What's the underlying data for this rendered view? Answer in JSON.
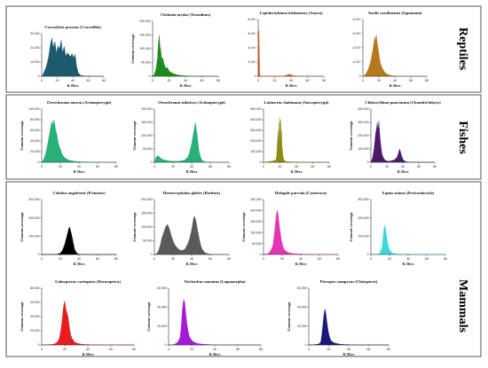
{
  "figure": {
    "colors": {
      "frame": "#555555",
      "axis": "#333333"
    }
  },
  "sections": [
    {
      "label": "Reptiles",
      "panels": [
        0,
        1,
        2,
        3
      ]
    },
    {
      "label": "Fishes",
      "panels": [
        4,
        5,
        6,
        7
      ]
    },
    {
      "label": "Mammals",
      "panels": [
        8,
        9,
        10,
        11,
        12,
        13,
        14
      ]
    }
  ],
  "chart_data": [
    {
      "type": "area",
      "title": "Crocodylus porosus (Crocodilia)",
      "xlabel": "K Divs",
      "ylabel": "",
      "xlim": [
        0,
        80
      ],
      "ylim": [
        0,
        30000
      ],
      "xticks": [
        0,
        20,
        40,
        60,
        80
      ],
      "yticks": [
        0,
        10000,
        20000,
        30000
      ],
      "ytick_labels": [
        "0",
        "10,000",
        "20,000",
        "30,000"
      ],
      "color": "#1c5a6e",
      "x": [
        0,
        1,
        3,
        5,
        7,
        9,
        11,
        13,
        15,
        17,
        19,
        21,
        23,
        25,
        27,
        29,
        31,
        33,
        35,
        37,
        39,
        41,
        43,
        45,
        47,
        50,
        55,
        60,
        70,
        80
      ],
      "y": [
        0,
        500,
        3000,
        5500,
        9000,
        14000,
        22000,
        27000,
        20000,
        24500,
        16000,
        21500,
        19000,
        25500,
        16500,
        21000,
        14000,
        16500,
        15500,
        13500,
        16000,
        13000,
        15500,
        7000,
        2500,
        600,
        200,
        80,
        0,
        0
      ]
    },
    {
      "type": "area",
      "title": "Chelonia mydas (Testudines)",
      "xlabel": "K Divs",
      "ylabel": "Genome coverage",
      "xlim": [
        0,
        80
      ],
      "ylim": [
        0,
        200000
      ],
      "xticks": [
        0,
        20,
        40,
        60,
        80
      ],
      "yticks": [
        0,
        50000,
        100000,
        150000,
        200000
      ],
      "ytick_labels": [
        "0",
        "50,000",
        "100,000",
        "150,000",
        "200,000"
      ],
      "color": "#1f8a1f",
      "x": [
        0,
        2,
        4,
        6,
        7,
        8,
        9,
        10,
        11,
        12,
        14,
        16,
        18,
        20,
        22,
        25,
        30,
        35,
        40,
        50,
        60,
        70,
        80
      ],
      "y": [
        0,
        6000,
        25000,
        65000,
        120000,
        150000,
        110000,
        95000,
        60000,
        70000,
        45000,
        30000,
        32000,
        20000,
        15000,
        10000,
        5000,
        3000,
        1500,
        500,
        0,
        0,
        0
      ]
    },
    {
      "type": "area",
      "title": "Leptobrachium leishanense (Anura)",
      "xlabel": "K Divs",
      "ylabel": "",
      "xlim": [
        0,
        80
      ],
      "ylim": [
        0,
        8000000
      ],
      "xticks": [
        0,
        20,
        40,
        60,
        80
      ],
      "yticks": [
        0,
        2000000,
        4000000,
        6000000,
        8000000
      ],
      "ytick_labels": [
        "0",
        "2×10⁶",
        "4×10⁶",
        "6×10⁶",
        "8×10⁶"
      ],
      "color": "#e8631c",
      "x": [
        0,
        0.5,
        1,
        1.5,
        2,
        3,
        5,
        10,
        20,
        30,
        34,
        36,
        38,
        40,
        42,
        50,
        60,
        70,
        80
      ],
      "y": [
        0,
        5500000,
        6500000,
        3000000,
        200000,
        50000,
        30000,
        20000,
        15000,
        20000,
        120000,
        250000,
        300000,
        200000,
        90000,
        20000,
        5000,
        0,
        0
      ]
    },
    {
      "type": "area",
      "title": "Anolis carolinensis (Squamata)",
      "xlabel": "K Divs",
      "ylabel": "",
      "xlim": [
        0,
        80
      ],
      "ylim": [
        0,
        400000
      ],
      "xticks": [
        0,
        20,
        40,
        60,
        80
      ],
      "yticks": [
        0,
        100000,
        200000,
        300000,
        400000
      ],
      "ytick_labels": [
        "0",
        "1×10⁵",
        "2×10⁵",
        "3×10⁵",
        "4×10⁵"
      ],
      "color": "#b5781c",
      "x": [
        0,
        2,
        4,
        6,
        8,
        10,
        12,
        14,
        15,
        16,
        17,
        18,
        19,
        20,
        21,
        22,
        24,
        26,
        28,
        30,
        35,
        40,
        50,
        60,
        80
      ],
      "y": [
        0,
        5000,
        20000,
        40000,
        70000,
        110000,
        170000,
        240000,
        280000,
        250000,
        290000,
        230000,
        200000,
        160000,
        120000,
        90000,
        60000,
        40000,
        25000,
        15000,
        5000,
        2000,
        0,
        0,
        0
      ]
    },
    {
      "type": "area",
      "title": "Oreochromis aureus (Actinopterygii)",
      "xlabel": "K Divs",
      "ylabel": "Genome coverage",
      "xlim": [
        0,
        80
      ],
      "ylim": [
        0,
        100000
      ],
      "xticks": [
        0,
        20,
        40,
        60,
        80
      ],
      "yticks": [
        0,
        20000,
        40000,
        60000,
        80000,
        100000
      ],
      "ytick_labels": [
        "0",
        "20,000",
        "40,000",
        "60,000",
        "80,000",
        "100,000"
      ],
      "color": "#28b07a",
      "x": [
        0,
        2,
        4,
        6,
        8,
        10,
        11,
        12,
        13,
        14,
        15,
        16,
        17,
        18,
        20,
        22,
        24,
        26,
        28,
        30,
        35,
        40,
        50,
        60,
        80
      ],
      "y": [
        0,
        5000,
        15000,
        30000,
        50000,
        70000,
        78000,
        68000,
        80000,
        72000,
        60000,
        55000,
        45000,
        35000,
        25000,
        15000,
        10000,
        7000,
        5000,
        3500,
        2000,
        1000,
        500,
        0,
        0
      ]
    },
    {
      "type": "area",
      "title": "Oreochromis niloticus (Actinopterygii)",
      "xlabel": "K Divs",
      "ylabel": "Genome coverage",
      "xlim": [
        0,
        80
      ],
      "ylim": [
        0,
        200000
      ],
      "xticks": [
        0,
        20,
        40,
        60,
        80
      ],
      "yticks": [
        0,
        50000,
        100000,
        150000,
        200000
      ],
      "ytick_labels": [
        "0",
        "50,000",
        "100,000",
        "150,000",
        "200,000"
      ],
      "color": "#28b07a",
      "x": [
        0,
        2,
        4,
        6,
        8,
        10,
        12,
        14,
        16,
        20,
        25,
        30,
        33,
        36,
        38,
        40,
        42,
        43,
        44,
        45,
        46,
        47,
        48,
        50,
        52,
        55,
        60,
        80
      ],
      "y": [
        0,
        20000,
        25000,
        18000,
        12000,
        9000,
        8000,
        6000,
        5000,
        4000,
        4000,
        6000,
        10000,
        20000,
        40000,
        70000,
        110000,
        130000,
        150000,
        125000,
        100000,
        70000,
        40000,
        15000,
        5000,
        1000,
        0,
        0
      ]
    },
    {
      "type": "area",
      "title": "Latimeria chalumnae (Sarcopterygii)",
      "xlabel": "K Divs",
      "ylabel": "",
      "xlim": [
        0,
        80
      ],
      "ylim": [
        0,
        500000
      ],
      "xticks": [
        0,
        20,
        40,
        60,
        80
      ],
      "yticks": [
        0,
        100000,
        200000,
        300000,
        400000,
        500000
      ],
      "ytick_labels": [
        "0",
        "100,000",
        "200,000",
        "300,000",
        "400,000",
        "500,000"
      ],
      "color": "#8c8c14",
      "x": [
        0,
        5,
        10,
        15,
        16,
        17,
        18,
        18.5,
        19,
        19.5,
        20,
        20.5,
        21,
        21.5,
        22,
        22.5,
        23,
        24,
        26,
        30,
        40,
        60,
        80
      ],
      "y": [
        0,
        5000,
        10000,
        20000,
        60000,
        200000,
        300000,
        180000,
        380000,
        200000,
        420000,
        150000,
        390000,
        250000,
        300000,
        150000,
        120000,
        40000,
        10000,
        5000,
        2000,
        0,
        0
      ]
    },
    {
      "type": "area",
      "title": "Chiloscyllium punctatum (Chondrichthyes)",
      "xlabel": "K Divs",
      "ylabel": "Genome coverage",
      "xlim": [
        0,
        80
      ],
      "ylim": [
        0,
        400000
      ],
      "xticks": [
        0,
        20,
        40,
        60,
        80
      ],
      "yticks": [
        0,
        100000,
        200000,
        300000,
        400000
      ],
      "ytick_labels": [
        "0",
        "100,000",
        "200,000",
        "300,000",
        "400,000"
      ],
      "color": "#4b1a6b",
      "x": [
        0,
        2,
        4,
        6,
        7,
        8,
        9,
        10,
        11,
        12,
        13,
        14,
        16,
        18,
        20,
        22,
        25,
        30,
        33,
        35,
        36,
        37,
        38,
        40,
        42,
        45,
        50,
        60,
        80
      ],
      "y": [
        0,
        30000,
        100000,
        220000,
        250000,
        300000,
        240000,
        310000,
        220000,
        150000,
        100000,
        60000,
        30000,
        15000,
        10000,
        8000,
        10000,
        20000,
        40000,
        80000,
        100000,
        80000,
        55000,
        25000,
        10000,
        3000,
        1000,
        0,
        0
      ]
    },
    {
      "type": "area",
      "title": "Colobus angolensis (Primates)",
      "xlabel": "K Divs",
      "ylabel": "Genome coverage",
      "xlim": [
        0,
        80
      ],
      "ylim": [
        0,
        300000
      ],
      "xticks": [
        0,
        20,
        40,
        60,
        80
      ],
      "yticks": [
        0,
        100000,
        200000,
        300000
      ],
      "ytick_labels": [
        "0",
        "100,000",
        "200,000",
        "300,000"
      ],
      "color": "#000000",
      "x": [
        0,
        10,
        15,
        18,
        20,
        22,
        24,
        25,
        26,
        27,
        28,
        29,
        30,
        31,
        32,
        33,
        34,
        35,
        36,
        38,
        40,
        45,
        50,
        60,
        80
      ],
      "y": [
        0,
        500,
        1000,
        3000,
        8000,
        20000,
        45000,
        60000,
        80000,
        100000,
        120000,
        140000,
        150000,
        130000,
        110000,
        85000,
        60000,
        35000,
        20000,
        6000,
        2000,
        500,
        200,
        0,
        0
      ]
    },
    {
      "type": "area",
      "title": "Heterocephalus glaber (Rodents)",
      "xlabel": "K Divs",
      "ylabel": "Genome coverage",
      "xlim": [
        0,
        80
      ],
      "ylim": [
        0,
        200000
      ],
      "xticks": [
        0,
        20,
        40,
        60,
        80
      ],
      "yticks": [
        0,
        50000,
        100000,
        150000,
        200000
      ],
      "ytick_labels": [
        "0",
        "50,000",
        "100,000",
        "150,000",
        "200,000"
      ],
      "color": "#5a5a5a",
      "x": [
        0,
        2,
        4,
        6,
        8,
        10,
        12,
        14,
        16,
        18,
        20,
        22,
        25,
        28,
        30,
        33,
        36,
        38,
        40,
        41,
        42,
        43,
        44,
        45,
        46,
        48,
        50,
        52,
        55,
        60,
        80
      ],
      "y": [
        0,
        2000,
        10000,
        30000,
        60000,
        80000,
        100000,
        110000,
        95000,
        70000,
        50000,
        35000,
        22000,
        15000,
        15000,
        20000,
        40000,
        60000,
        90000,
        110000,
        130000,
        140000,
        130000,
        115000,
        95000,
        60000,
        30000,
        15000,
        5000,
        1000,
        0
      ]
    },
    {
      "type": "area",
      "title": "Helogale parvula (Carnivora)",
      "xlabel": "K Divs",
      "ylabel": "Genome coverage",
      "xlim": [
        0,
        80
      ],
      "ylim": [
        0,
        250000
      ],
      "xticks": [
        0,
        20,
        40,
        60,
        80
      ],
      "yticks": [
        0,
        50000,
        100000,
        150000,
        200000,
        250000
      ],
      "ytick_labels": [
        "0",
        "50,000",
        "100,000",
        "150,000",
        "200,000",
        "250,000"
      ],
      "color": "#e334b4",
      "x": [
        0,
        4,
        6,
        8,
        10,
        11,
        12,
        13,
        14,
        15,
        16,
        17,
        18,
        19,
        20,
        21,
        22,
        24,
        26,
        28,
        30,
        35,
        40,
        45,
        50,
        60,
        80
      ],
      "y": [
        0,
        3000,
        8000,
        20000,
        40000,
        70000,
        110000,
        150000,
        190000,
        200000,
        170000,
        130000,
        100000,
        70000,
        50000,
        35000,
        25000,
        15000,
        10000,
        7000,
        5000,
        3000,
        2000,
        1000,
        500,
        0,
        0
      ]
    },
    {
      "type": "area",
      "title": "Equus asinus (Perissodactyla)",
      "xlabel": "K Divs",
      "ylabel": "Genome coverage",
      "xlim": [
        0,
        80
      ],
      "ylim": [
        0,
        300000
      ],
      "xticks": [
        0,
        20,
        40,
        60,
        80
      ],
      "yticks": [
        0,
        100000,
        200000,
        300000
      ],
      "ytick_labels": [
        "0",
        "100,000",
        "200,000",
        "300,000"
      ],
      "color": "#3ad8e0",
      "x": [
        0,
        6,
        8,
        10,
        12,
        13,
        14,
        15,
        16,
        17,
        18,
        19,
        20,
        22,
        24,
        26,
        30,
        35,
        40,
        50,
        60,
        80
      ],
      "y": [
        0,
        1000,
        3000,
        10000,
        40000,
        90000,
        140000,
        160000,
        130000,
        100000,
        60000,
        40000,
        25000,
        12000,
        6000,
        4000,
        2000,
        1000,
        500,
        0,
        0,
        0
      ]
    },
    {
      "type": "area",
      "title": "Galeopterus variegatus (Dermoptera)",
      "xlabel": "K Divs",
      "ylabel": "Genome coverage",
      "xlim": [
        0,
        80
      ],
      "ylim": [
        0,
        80000
      ],
      "xticks": [
        0,
        20,
        40,
        60,
        80
      ],
      "yticks": [
        0,
        20000,
        40000,
        60000,
        80000
      ],
      "ytick_labels": [
        "0",
        "20,000",
        "40,000",
        "60,000",
        "80,000"
      ],
      "color": "#e81c1c",
      "x": [
        0,
        5,
        10,
        13,
        15,
        16,
        17,
        18,
        19,
        20,
        21,
        22,
        23,
        24,
        25,
        26,
        28,
        30,
        35,
        40,
        50,
        60,
        80
      ],
      "y": [
        0,
        300,
        1000,
        3000,
        8000,
        15000,
        25000,
        40000,
        55000,
        62000,
        50000,
        45000,
        38000,
        25000,
        15000,
        10000,
        5000,
        2500,
        1000,
        500,
        0,
        0,
        0
      ]
    },
    {
      "type": "area",
      "title": "Trichechus manatus (Lagomorpha)",
      "xlabel": "K Divs",
      "ylabel": "Genome coverage",
      "xlim": [
        0,
        80
      ],
      "ylim": [
        0,
        60000
      ],
      "xticks": [
        0,
        20,
        40,
        60,
        80
      ],
      "yticks": [
        0,
        20000,
        40000,
        60000
      ],
      "ytick_labels": [
        "0",
        "20,000",
        "40,000",
        "60,000"
      ],
      "color": "#a51ad4",
      "x": [
        0,
        5,
        8,
        10,
        11,
        12,
        13,
        14,
        15,
        16,
        17,
        18,
        20,
        22,
        25,
        30,
        35,
        40,
        50,
        60,
        80
      ],
      "y": [
        0,
        500,
        3000,
        8000,
        20000,
        38000,
        48000,
        45000,
        32000,
        22000,
        14000,
        9000,
        5000,
        3000,
        1500,
        800,
        400,
        200,
        0,
        0,
        0
      ]
    },
    {
      "type": "area",
      "title": "Pteropus vampyrus (Chiroptera)",
      "xlabel": "K Divs",
      "ylabel": "Genome coverage",
      "xlim": [
        0,
        80
      ],
      "ylim": [
        0,
        60000
      ],
      "xticks": [
        0,
        20,
        40,
        60,
        80
      ],
      "yticks": [
        0,
        20000,
        40000,
        60000
      ],
      "ytick_labels": [
        "0",
        "20,000",
        "40,000",
        "60,000"
      ],
      "color": "#1a1a78",
      "x": [
        0,
        5,
        10,
        12,
        13,
        14,
        15,
        16,
        17,
        18,
        19,
        20,
        21,
        22,
        24,
        26,
        30,
        35,
        40,
        50,
        60,
        80
      ],
      "y": [
        0,
        300,
        1000,
        3000,
        10000,
        20000,
        30000,
        38000,
        34000,
        26000,
        18000,
        12000,
        8000,
        5000,
        3000,
        2000,
        1000,
        500,
        300,
        0,
        0,
        0
      ]
    }
  ]
}
